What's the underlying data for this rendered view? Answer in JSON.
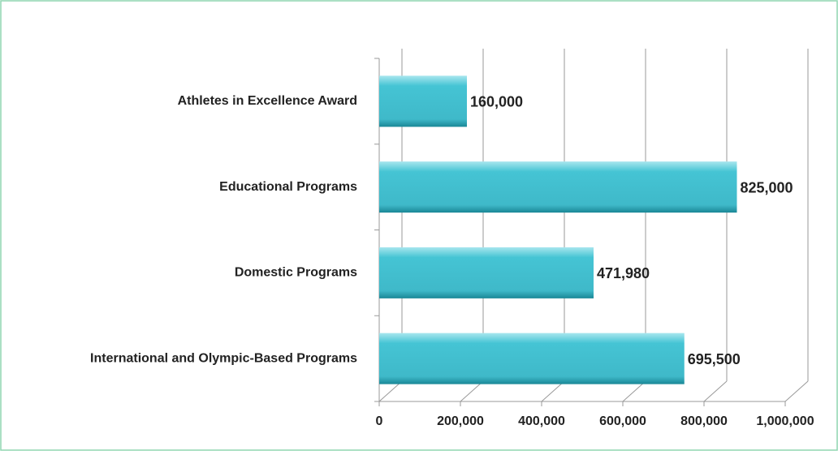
{
  "chart_data": {
    "type": "barh",
    "categories": [
      "Athletes in Excellence Award",
      "Educational Programs",
      "Domestic Programs",
      "International and Olympic-Based Programs"
    ],
    "values": [
      160000,
      825000,
      471980,
      695500
    ],
    "value_labels": [
      "160,000",
      "825,000",
      "471,980",
      "695,500"
    ],
    "color": "#45c4d4",
    "xlim": [
      0,
      1000000
    ],
    "xticks": [
      0,
      {
        "value": 200000,
        "label": "200,000"
      },
      {
        "value": 400000,
        "label": "400,000"
      },
      {
        "value": 600000,
        "label": "600,000"
      },
      {
        "value": 800000,
        "label": "800,000"
      },
      {
        "value": 1000000,
        "label": "1,000,000"
      }
    ],
    "grid": true
  }
}
